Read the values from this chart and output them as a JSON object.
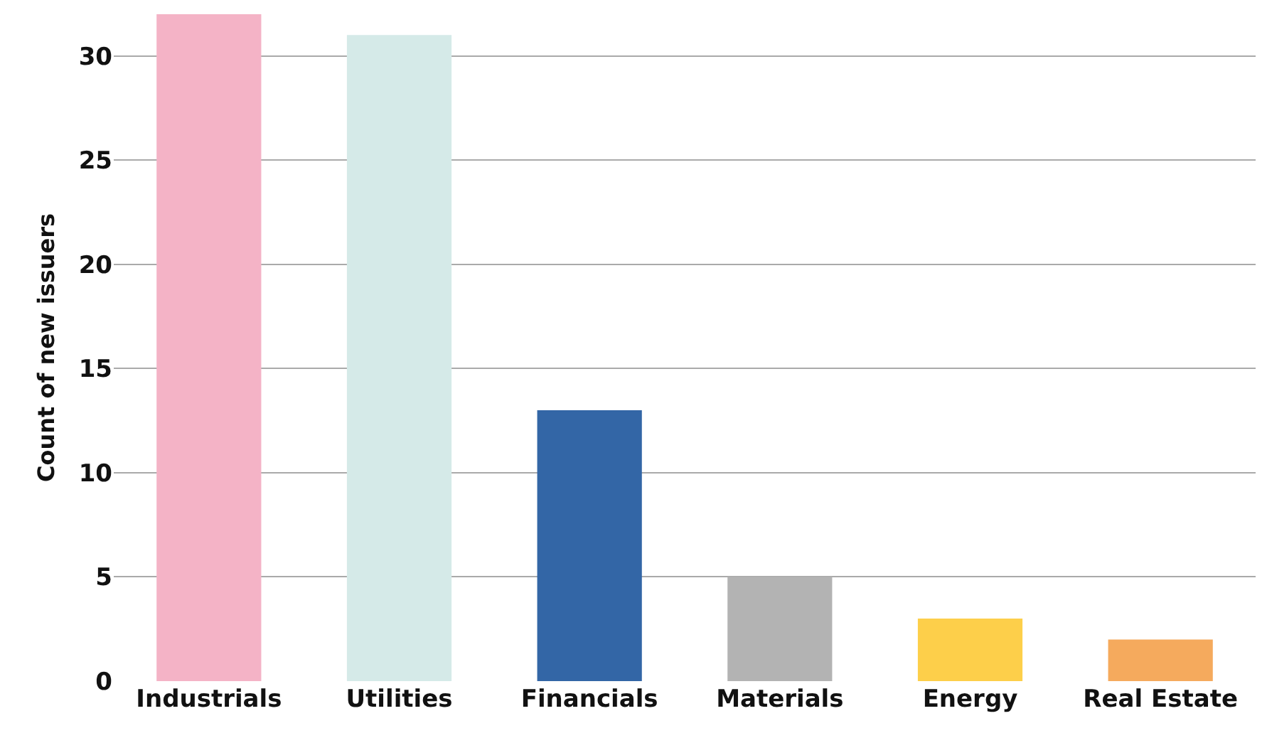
{
  "chart_data": {
    "type": "bar",
    "ylabel": "Count of new issuers",
    "categories": [
      "Industrials",
      "Utilities",
      "Financials",
      "Materials",
      "Energy",
      "Real Estate"
    ],
    "values": [
      32,
      31,
      13,
      5,
      3,
      2
    ],
    "colors": [
      "#f4b3c6",
      "#d5eae8",
      "#3366a6",
      "#b3b3b3",
      "#fdcf4a",
      "#f5aa5d"
    ],
    "ylim": [
      0,
      32
    ],
    "yticks": [
      0,
      5,
      10,
      15,
      20,
      25,
      30
    ],
    "grid": "y"
  }
}
